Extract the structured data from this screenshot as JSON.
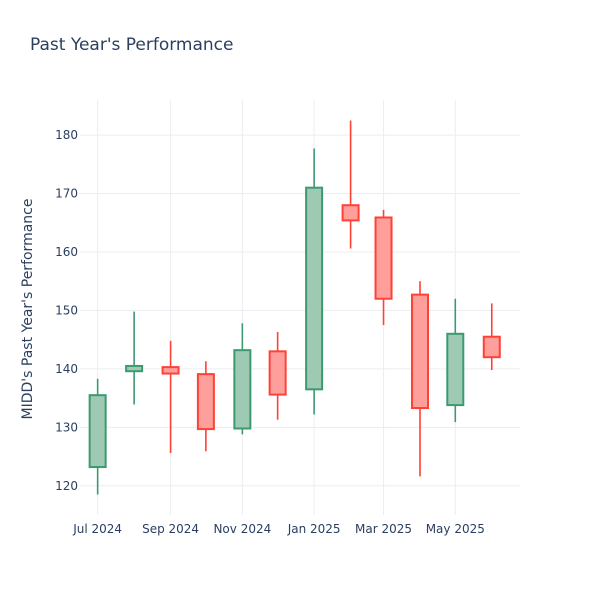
{
  "chart_data": {
    "type": "candlestick",
    "title": "Past Year's Performance",
    "ylabel": "MIDD's Past Year's Performance",
    "xlabel": "",
    "ylim": [
      115,
      186
    ],
    "xlim": [
      "2024-06-16",
      "2025-06-25"
    ],
    "yticks": [
      120,
      130,
      140,
      150,
      160,
      170,
      180
    ],
    "xticks": [
      {
        "date": "2024-07-01",
        "label": "Jul 2024"
      },
      {
        "date": "2024-09-01",
        "label": "Sep 2024"
      },
      {
        "date": "2024-11-01",
        "label": "Nov 2024"
      },
      {
        "date": "2025-01-01",
        "label": "Jan 2025"
      },
      {
        "date": "2025-03-01",
        "label": "Mar 2025"
      },
      {
        "date": "2025-05-01",
        "label": "May 2025"
      }
    ],
    "grid": true,
    "legend": "none",
    "colors": {
      "increasing_line": "#3d9970",
      "increasing_fill": "#9ecab3",
      "decreasing_line": "#ff4136",
      "decreasing_fill": "#ff9f9b"
    },
    "candles": [
      {
        "date": "2024-07-01",
        "open": 123.2,
        "high": 138.3,
        "low": 118.5,
        "close": 135.5
      },
      {
        "date": "2024-08-01",
        "open": 139.6,
        "high": 149.8,
        "low": 133.9,
        "close": 140.5
      },
      {
        "date": "2024-09-01",
        "open": 140.3,
        "high": 144.8,
        "low": 125.6,
        "close": 139.2
      },
      {
        "date": "2024-10-01",
        "open": 139.1,
        "high": 141.3,
        "low": 125.9,
        "close": 129.7
      },
      {
        "date": "2024-11-01",
        "open": 129.8,
        "high": 147.8,
        "low": 128.8,
        "close": 143.2
      },
      {
        "date": "2024-12-01",
        "open": 143.0,
        "high": 146.3,
        "low": 131.3,
        "close": 135.6
      },
      {
        "date": "2025-01-01",
        "open": 136.5,
        "high": 177.7,
        "low": 132.2,
        "close": 171.0
      },
      {
        "date": "2025-02-01",
        "open": 168.0,
        "high": 182.5,
        "low": 160.6,
        "close": 165.4
      },
      {
        "date": "2025-03-01",
        "open": 165.9,
        "high": 167.2,
        "low": 147.5,
        "close": 152.0
      },
      {
        "date": "2025-04-01",
        "open": 152.7,
        "high": 155.0,
        "low": 121.6,
        "close": 133.3
      },
      {
        "date": "2025-05-01",
        "open": 133.8,
        "high": 152.0,
        "low": 130.9,
        "close": 146.0
      },
      {
        "date": "2025-06-01",
        "open": 145.5,
        "high": 151.2,
        "low": 139.8,
        "close": 142.0
      }
    ]
  }
}
